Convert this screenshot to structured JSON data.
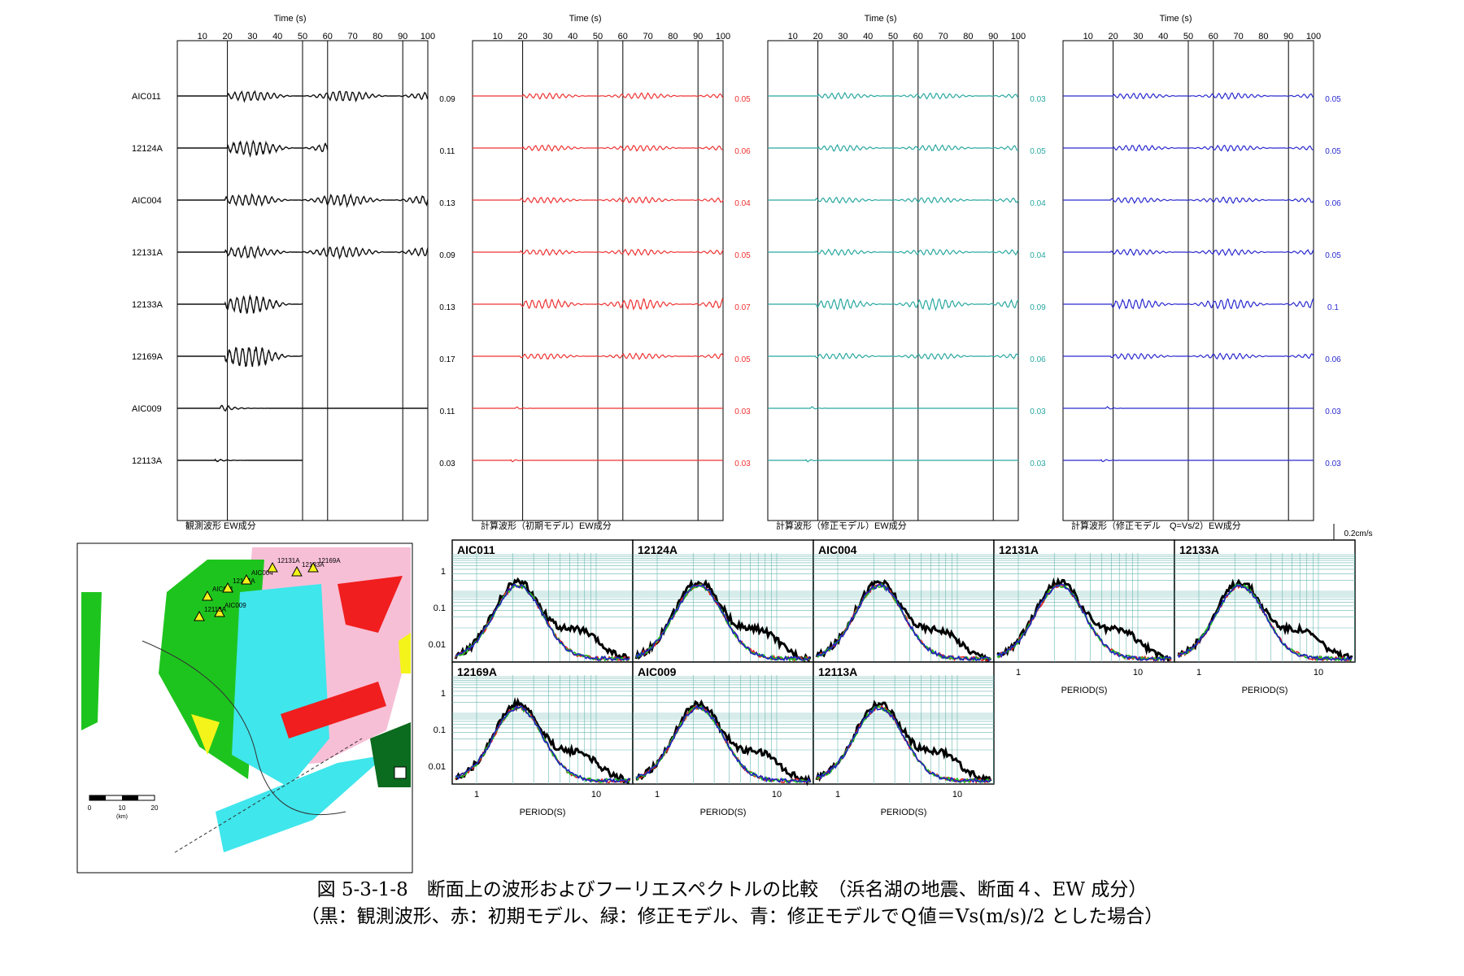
{
  "wave": {
    "time_axis_label": "Time (s)",
    "ticks": [
      10,
      20,
      30,
      40,
      50,
      60,
      70,
      80,
      90,
      100
    ],
    "stations": [
      "AIC011",
      "12124A",
      "AIC004",
      "12131A",
      "12133A",
      "12169A",
      "AIC009",
      "12113A"
    ],
    "scale_label": "0.2cm/s",
    "panels": [
      {
        "title": "観測波形 EW成分",
        "color": "#111111",
        "amps": [
          "0.09",
          "0.11",
          "0.13",
          "0.09",
          "0.13",
          "0.17",
          "0.11",
          "0.03"
        ]
      },
      {
        "title": "計算波形（初期モデル）EW成分",
        "color": "#ee3333",
        "amps": [
          "0.05",
          "0.06",
          "0.04",
          "0.05",
          "0.07",
          "0.05",
          "0.03",
          "0.03"
        ]
      },
      {
        "title": "計算波形（修正モデル）EW成分",
        "color": "#2aa8a0",
        "amps": [
          "0.03",
          "0.05",
          "0.04",
          "0.04",
          "0.09",
          "0.06",
          "0.03",
          "0.03"
        ]
      },
      {
        "title": "計算波形（修正モデル　Q=Vs/2）EW成分",
        "color": "#2a2ad0",
        "amps": [
          "0.05",
          "0.05",
          "0.06",
          "0.05",
          "0.1",
          "0.06",
          "0.03",
          "0.03"
        ]
      }
    ]
  },
  "spectra": {
    "y_ticks": [
      "1",
      "0.1",
      "0.01"
    ],
    "x_ticks": [
      "1",
      "10"
    ],
    "xlabel": "PERIOD(S)",
    "panels": [
      "AIC011",
      "12124A",
      "AIC004",
      "12131A",
      "12133A",
      "12169A",
      "AIC009",
      "12113A"
    ],
    "series_colors": {
      "observed": "#000000",
      "initial": "#e02020",
      "modified": "#20c020",
      "modified_q": "#2020c0"
    }
  },
  "map": {
    "stations": [
      "AIC011",
      "12124A",
      "AIC004",
      "12131A",
      "12133A",
      "12169A",
      "AIC009",
      "12113A"
    ],
    "scale_ticks": [
      "0",
      "10",
      "20"
    ],
    "scale_unit": "(km)"
  },
  "caption": {
    "line1": "図 5-3-1-8　断面上の波形およびフーリエスペクトルの比較　（浜名湖の地震、断面４、EW 成分）",
    "line2": "（黒：観測波形、赤：初期モデル、緑：修正モデル、青：修正モデルでＱ値＝Vs(m/s)/2 とした場合）"
  }
}
